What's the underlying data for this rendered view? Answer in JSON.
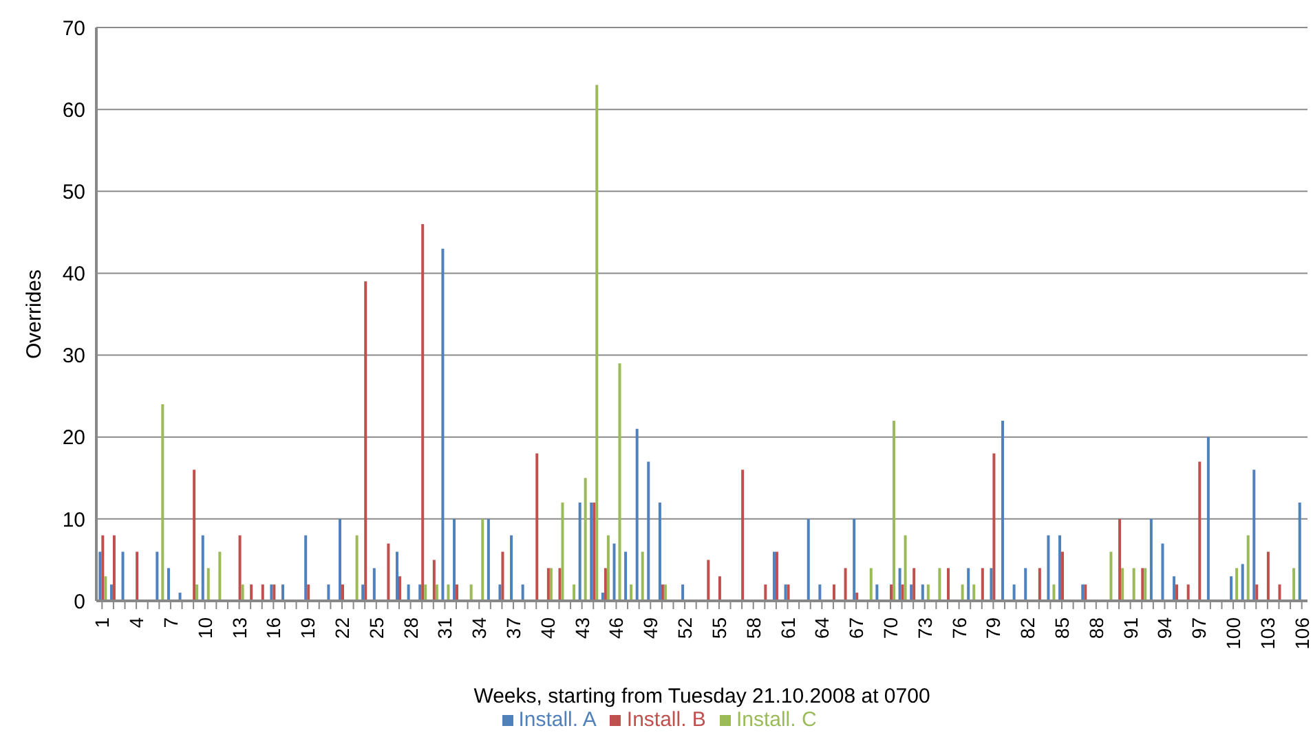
{
  "chart_data": {
    "type": "bar",
    "xlabel": "Weeks, starting from Tuesday 21.10.2008 at 0700",
    "ylabel": "Overrides",
    "categories": [
      "1",
      null,
      null,
      "4",
      null,
      null,
      "7",
      null,
      null,
      "10",
      null,
      null,
      "13",
      null,
      null,
      "16",
      null,
      null,
      "19",
      null,
      null,
      "22",
      null,
      null,
      "25",
      null,
      null,
      "28",
      null,
      null,
      "31",
      null,
      null,
      "34",
      null,
      null,
      "37",
      null,
      null,
      "40",
      null,
      null,
      "43",
      null,
      null,
      "46",
      null,
      null,
      "49",
      null,
      null,
      "52",
      null,
      null,
      "55",
      null,
      null,
      "58",
      null,
      null,
      "61",
      null,
      null,
      "64",
      null,
      null,
      "67",
      null,
      null,
      "70",
      null,
      null,
      "73",
      null,
      null,
      "76",
      null,
      null,
      "79",
      null,
      null,
      "82",
      null,
      null,
      "85",
      null,
      null,
      "88",
      null,
      null,
      "91",
      null,
      null,
      "94",
      null,
      null,
      "97",
      null,
      null,
      "100",
      null,
      null,
      "103",
      null,
      null,
      "106"
    ],
    "series": [
      {
        "name": "Install. A",
        "color": "#4f81bd",
        "values": [
          6,
          2,
          6,
          null,
          null,
          6,
          4,
          1,
          null,
          8,
          null,
          null,
          null,
          null,
          null,
          2,
          2,
          null,
          8,
          null,
          2,
          10,
          null,
          2,
          4,
          null,
          6,
          2,
          2,
          null,
          43,
          10,
          null,
          null,
          10,
          2,
          8,
          2,
          null,
          null,
          null,
          null,
          12,
          12,
          1,
          7,
          6,
          21,
          17,
          12,
          null,
          2,
          null,
          null,
          null,
          null,
          null,
          null,
          null,
          6,
          2,
          null,
          10,
          2,
          null,
          null,
          10,
          null,
          2,
          null,
          4,
          2,
          2,
          null,
          null,
          null,
          4,
          null,
          4,
          22,
          2,
          4,
          null,
          8,
          8,
          null,
          2,
          null,
          null,
          null,
          null,
          null,
          10,
          7,
          3,
          null,
          null,
          20,
          null,
          3,
          4.5,
          16,
          null,
          null,
          null,
          12
        ]
      },
      {
        "name": "Install. B",
        "color": "#c0504d",
        "values": [
          8,
          8,
          null,
          6,
          null,
          null,
          null,
          null,
          16,
          null,
          null,
          null,
          8,
          2,
          2,
          2,
          null,
          null,
          2,
          null,
          null,
          2,
          null,
          39,
          null,
          7,
          3,
          null,
          46,
          5,
          null,
          2,
          null,
          null,
          null,
          6,
          null,
          null,
          18,
          4,
          4,
          null,
          null,
          12,
          4,
          null,
          null,
          null,
          null,
          2,
          null,
          null,
          null,
          5,
          3,
          null,
          16,
          null,
          2,
          6,
          2,
          null,
          null,
          null,
          2,
          4,
          1,
          null,
          null,
          2,
          2,
          4,
          null,
          null,
          4,
          null,
          null,
          4,
          18,
          null,
          null,
          null,
          4,
          null,
          6,
          null,
          2,
          null,
          null,
          10,
          null,
          4,
          null,
          null,
          2,
          2,
          17,
          null,
          null,
          null,
          null,
          2,
          6,
          2,
          null,
          null
        ]
      },
      {
        "name": "Install. C",
        "color": "#9bbb59",
        "values": [
          3,
          null,
          null,
          null,
          null,
          24,
          null,
          null,
          2,
          4,
          6,
          null,
          2,
          null,
          null,
          null,
          null,
          null,
          null,
          null,
          null,
          null,
          8,
          null,
          null,
          null,
          null,
          null,
          2,
          2,
          2,
          null,
          2,
          10,
          null,
          null,
          null,
          null,
          null,
          4,
          12,
          2,
          15,
          63,
          8,
          29,
          2,
          6,
          null,
          2,
          null,
          null,
          null,
          null,
          null,
          null,
          null,
          null,
          null,
          null,
          null,
          null,
          null,
          null,
          null,
          null,
          null,
          4,
          null,
          22,
          8,
          null,
          2,
          4,
          null,
          2,
          2,
          null,
          null,
          null,
          null,
          null,
          null,
          2,
          null,
          null,
          null,
          null,
          6,
          4,
          4,
          4,
          null,
          null,
          null,
          null,
          null,
          null,
          null,
          4,
          8,
          null,
          null,
          null,
          4,
          null
        ]
      }
    ],
    "ylim": [
      0,
      70
    ],
    "yticks": [
      0,
      10,
      20,
      30,
      40,
      50,
      60,
      70
    ],
    "grid": "y",
    "legend": "bottom"
  }
}
